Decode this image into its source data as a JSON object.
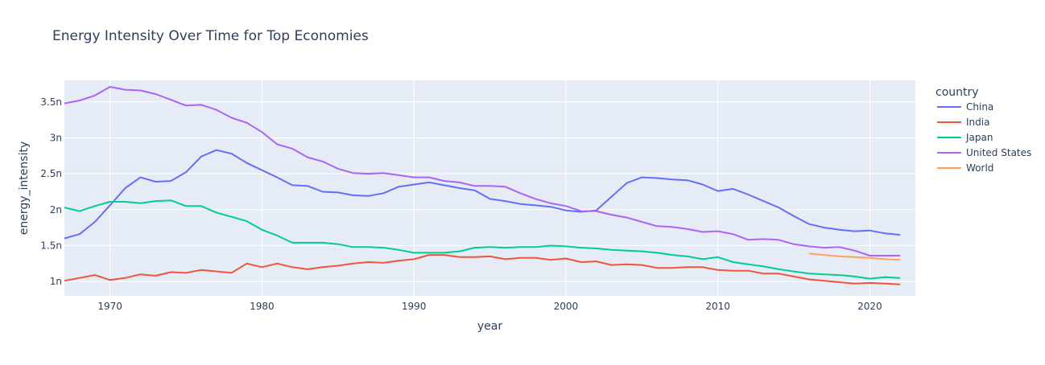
{
  "chart_data": {
    "type": "line",
    "title": "Energy Intensity Over Time for Top Economies",
    "xlabel": "year",
    "ylabel": "energy_intensity",
    "xlim": [
      1967,
      2023
    ],
    "ylim": [
      8e-10,
      3.8e-09
    ],
    "x_ticks": [
      1970,
      1980,
      1990,
      2000,
      2010,
      2020
    ],
    "y_ticks": [
      {
        "value": 1e-09,
        "label": "1n"
      },
      {
        "value": 1.5e-09,
        "label": "1.5n"
      },
      {
        "value": 2e-09,
        "label": "2n"
      },
      {
        "value": 2.5e-09,
        "label": "2.5n"
      },
      {
        "value": 3e-09,
        "label": "3n"
      },
      {
        "value": 3.5e-09,
        "label": "3.5n"
      }
    ],
    "grid": true,
    "legend_title": "country",
    "legend_position": "right",
    "series": [
      {
        "name": "China",
        "color": "#636efa",
        "x": [
          1967,
          1968,
          1969,
          1970,
          1971,
          1972,
          1973,
          1974,
          1975,
          1976,
          1977,
          1978,
          1979,
          1980,
          1981,
          1982,
          1983,
          1984,
          1985,
          1986,
          1987,
          1988,
          1989,
          1990,
          1991,
          1992,
          1993,
          1994,
          1995,
          1996,
          1997,
          1998,
          1999,
          2000,
          2001,
          2002,
          2003,
          2004,
          2005,
          2006,
          2007,
          2008,
          2009,
          2010,
          2011,
          2012,
          2013,
          2014,
          2015,
          2016,
          2017,
          2018,
          2019,
          2020,
          2021,
          2022
        ],
        "y": [
          1.6e-09,
          1.66e-09,
          1.83e-09,
          2.06e-09,
          2.3e-09,
          2.45e-09,
          2.39e-09,
          2.4e-09,
          2.52e-09,
          2.74e-09,
          2.83e-09,
          2.78e-09,
          2.65e-09,
          2.55e-09,
          2.45e-09,
          2.34e-09,
          2.33e-09,
          2.25e-09,
          2.24e-09,
          2.2e-09,
          2.19e-09,
          2.23e-09,
          2.32e-09,
          2.35e-09,
          2.38e-09,
          2.34e-09,
          2.3e-09,
          2.27e-09,
          2.15e-09,
          2.12e-09,
          2.08e-09,
          2.06e-09,
          2.04e-09,
          1.99e-09,
          1.97e-09,
          1.99e-09,
          2.18e-09,
          2.37e-09,
          2.45e-09,
          2.44e-09,
          2.42e-09,
          2.41e-09,
          2.35e-09,
          2.26e-09,
          2.29e-09,
          2.21e-09,
          2.12e-09,
          2.03e-09,
          1.91e-09,
          1.8e-09,
          1.75e-09,
          1.72e-09,
          1.7e-09,
          1.71e-09,
          1.67e-09,
          1.65e-09
        ]
      },
      {
        "name": "India",
        "color": "#ef553b",
        "x": [
          1967,
          1968,
          1969,
          1970,
          1971,
          1972,
          1973,
          1974,
          1975,
          1976,
          1977,
          1978,
          1979,
          1980,
          1981,
          1982,
          1983,
          1984,
          1985,
          1986,
          1987,
          1988,
          1989,
          1990,
          1991,
          1992,
          1993,
          1994,
          1995,
          1996,
          1997,
          1998,
          1999,
          2000,
          2001,
          2002,
          2003,
          2004,
          2005,
          2006,
          2007,
          2008,
          2009,
          2010,
          2011,
          2012,
          2013,
          2014,
          2015,
          2016,
          2017,
          2018,
          2019,
          2020,
          2021,
          2022
        ],
        "y": [
          1.01e-09,
          1.05e-09,
          1.09e-09,
          1.02e-09,
          1.05e-09,
          1.1e-09,
          1.08e-09,
          1.13e-09,
          1.12e-09,
          1.16e-09,
          1.14e-09,
          1.12e-09,
          1.25e-09,
          1.2e-09,
          1.25e-09,
          1.2e-09,
          1.17e-09,
          1.2e-09,
          1.22e-09,
          1.25e-09,
          1.27e-09,
          1.26e-09,
          1.29e-09,
          1.31e-09,
          1.37e-09,
          1.37e-09,
          1.34e-09,
          1.34e-09,
          1.35e-09,
          1.31e-09,
          1.33e-09,
          1.33e-09,
          1.3e-09,
          1.32e-09,
          1.27e-09,
          1.28e-09,
          1.23e-09,
          1.24e-09,
          1.23e-09,
          1.19e-09,
          1.19e-09,
          1.2e-09,
          1.2e-09,
          1.16e-09,
          1.15e-09,
          1.15e-09,
          1.11e-09,
          1.11e-09,
          1.07e-09,
          1.03e-09,
          1.01e-09,
          9.9e-10,
          9.7e-10,
          9.8e-10,
          9.7e-10,
          9.6e-10
        ]
      },
      {
        "name": "Japan",
        "color": "#00cc96",
        "x": [
          1967,
          1968,
          1969,
          1970,
          1971,
          1972,
          1973,
          1974,
          1975,
          1976,
          1977,
          1978,
          1979,
          1980,
          1981,
          1982,
          1983,
          1984,
          1985,
          1986,
          1987,
          1988,
          1989,
          1990,
          1991,
          1992,
          1993,
          1994,
          1995,
          1996,
          1997,
          1998,
          1999,
          2000,
          2001,
          2002,
          2003,
          2004,
          2005,
          2006,
          2007,
          2008,
          2009,
          2010,
          2011,
          2012,
          2013,
          2014,
          2015,
          2016,
          2017,
          2018,
          2019,
          2020,
          2021,
          2022
        ],
        "y": [
          2.03e-09,
          1.98e-09,
          2.05e-09,
          2.11e-09,
          2.11e-09,
          2.09e-09,
          2.12e-09,
          2.13e-09,
          2.05e-09,
          2.05e-09,
          1.96e-09,
          1.9e-09,
          1.84e-09,
          1.72e-09,
          1.64e-09,
          1.54e-09,
          1.54e-09,
          1.54e-09,
          1.52e-09,
          1.48e-09,
          1.48e-09,
          1.47e-09,
          1.44e-09,
          1.4e-09,
          1.4e-09,
          1.4e-09,
          1.42e-09,
          1.47e-09,
          1.48e-09,
          1.47e-09,
          1.48e-09,
          1.48e-09,
          1.5e-09,
          1.49e-09,
          1.47e-09,
          1.46e-09,
          1.44e-09,
          1.43e-09,
          1.42e-09,
          1.4e-09,
          1.37e-09,
          1.35e-09,
          1.31e-09,
          1.34e-09,
          1.27e-09,
          1.24e-09,
          1.21e-09,
          1.17e-09,
          1.14e-09,
          1.11e-09,
          1.1e-09,
          1.09e-09,
          1.07e-09,
          1.04e-09,
          1.06e-09,
          1.05e-09
        ]
      },
      {
        "name": "United States",
        "color": "#ab63fa",
        "x": [
          1967,
          1968,
          1969,
          1970,
          1971,
          1972,
          1973,
          1974,
          1975,
          1976,
          1977,
          1978,
          1979,
          1980,
          1981,
          1982,
          1983,
          1984,
          1985,
          1986,
          1987,
          1988,
          1989,
          1990,
          1991,
          1992,
          1993,
          1994,
          1995,
          1996,
          1997,
          1998,
          1999,
          2000,
          2001,
          2002,
          2003,
          2004,
          2005,
          2006,
          2007,
          2008,
          2009,
          2010,
          2011,
          2012,
          2013,
          2014,
          2015,
          2016,
          2017,
          2018,
          2019,
          2020,
          2021,
          2022
        ],
        "y": [
          3.48e-09,
          3.52e-09,
          3.59e-09,
          3.71e-09,
          3.67e-09,
          3.66e-09,
          3.61e-09,
          3.53e-09,
          3.45e-09,
          3.46e-09,
          3.39e-09,
          3.28e-09,
          3.21e-09,
          3.08e-09,
          2.91e-09,
          2.85e-09,
          2.73e-09,
          2.67e-09,
          2.57e-09,
          2.51e-09,
          2.5e-09,
          2.51e-09,
          2.48e-09,
          2.45e-09,
          2.45e-09,
          2.4e-09,
          2.38e-09,
          2.33e-09,
          2.33e-09,
          2.32e-09,
          2.23e-09,
          2.15e-09,
          2.09e-09,
          2.05e-09,
          1.98e-09,
          1.98e-09,
          1.93e-09,
          1.89e-09,
          1.83e-09,
          1.77e-09,
          1.76e-09,
          1.73e-09,
          1.69e-09,
          1.7e-09,
          1.66e-09,
          1.58e-09,
          1.59e-09,
          1.58e-09,
          1.52e-09,
          1.49e-09,
          1.47e-09,
          1.48e-09,
          1.43e-09,
          1.36e-09,
          1.36e-09,
          1.36e-09
        ]
      },
      {
        "name": "World",
        "color": "#ffa15a",
        "x": [
          2016,
          2017,
          2018,
          2019,
          2020,
          2021,
          2022
        ],
        "y": [
          1.39e-09,
          1.37e-09,
          1.35e-09,
          1.34e-09,
          1.33e-09,
          1.31e-09,
          1.3e-09
        ]
      }
    ]
  }
}
